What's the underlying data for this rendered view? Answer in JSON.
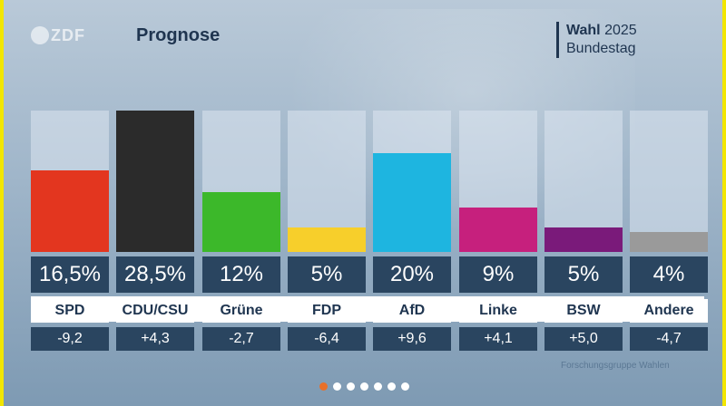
{
  "header": {
    "logo_text": "ZDF",
    "title": "Prognose",
    "election_bold": "Wahl",
    "election_year": "2025",
    "election_body": "Bundestag"
  },
  "chart_data": {
    "type": "bar",
    "title": "Prognose",
    "ylim": [
      0,
      28.5
    ],
    "categories": [
      "SPD",
      "CDU/CSU",
      "Grüne",
      "FDP",
      "AfD",
      "Linke",
      "BSW",
      "Andere"
    ],
    "values": [
      16.5,
      28.5,
      12,
      5,
      20,
      9,
      5,
      4
    ],
    "value_labels": [
      "16,5%",
      "28,5%",
      "12%",
      "5%",
      "20%",
      "9%",
      "5%",
      "4%"
    ],
    "changes": [
      "-9,2",
      "+4,3",
      "-2,7",
      "-6,4",
      "+9,6",
      "+4,1",
      "+5,0",
      "-4,7"
    ],
    "colors": [
      "#e3361f",
      "#2b2b2b",
      "#3cb82a",
      "#f7cf2b",
      "#1eb5e0",
      "#c6207d",
      "#7a1a7a",
      "#9a9a9a"
    ]
  },
  "footer": {
    "source": "Forschungsgruppe Wahlen",
    "pager_total": 7,
    "pager_active": 1
  }
}
